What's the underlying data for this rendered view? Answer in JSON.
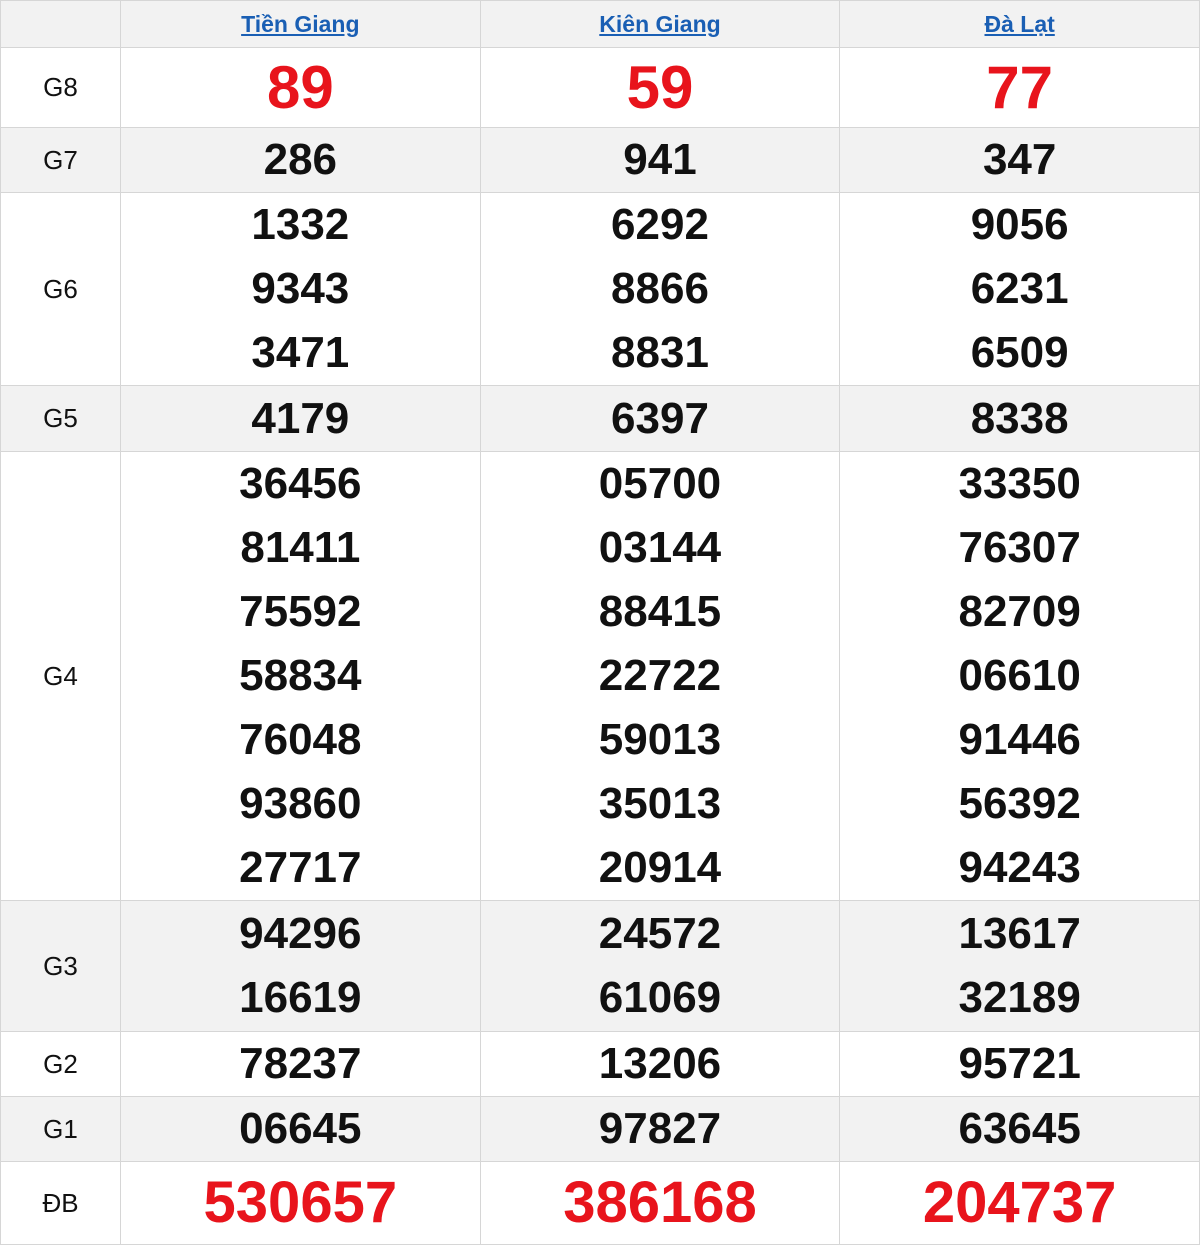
{
  "header": {
    "provinces": [
      "Tiền Giang",
      "Kiên Giang",
      "Đà Lạt"
    ]
  },
  "colors": {
    "link": "#1a5fb4",
    "highlight": "#e8141c",
    "alt_row": "#f2f2f2"
  },
  "prizes": [
    {
      "label": "G8",
      "values": [
        [
          "89"
        ],
        [
          "59"
        ],
        [
          "77"
        ]
      ]
    },
    {
      "label": "G7",
      "values": [
        [
          "286"
        ],
        [
          "941"
        ],
        [
          "347"
        ]
      ]
    },
    {
      "label": "G6",
      "values": [
        [
          "1332",
          "9343",
          "3471"
        ],
        [
          "6292",
          "8866",
          "8831"
        ],
        [
          "9056",
          "6231",
          "6509"
        ]
      ]
    },
    {
      "label": "G5",
      "values": [
        [
          "4179"
        ],
        [
          "6397"
        ],
        [
          "8338"
        ]
      ]
    },
    {
      "label": "G4",
      "values": [
        [
          "36456",
          "81411",
          "75592",
          "58834",
          "76048",
          "93860",
          "27717"
        ],
        [
          "05700",
          "03144",
          "88415",
          "22722",
          "59013",
          "35013",
          "20914"
        ],
        [
          "33350",
          "76307",
          "82709",
          "06610",
          "91446",
          "56392",
          "94243"
        ]
      ]
    },
    {
      "label": "G3",
      "values": [
        [
          "94296",
          "16619"
        ],
        [
          "24572",
          "61069"
        ],
        [
          "13617",
          "32189"
        ]
      ]
    },
    {
      "label": "G2",
      "values": [
        [
          "78237"
        ],
        [
          "13206"
        ],
        [
          "95721"
        ]
      ]
    },
    {
      "label": "G1",
      "values": [
        [
          "06645"
        ],
        [
          "97827"
        ],
        [
          "63645"
        ]
      ]
    },
    {
      "label": "ĐB",
      "values": [
        [
          "530657"
        ],
        [
          "386168"
        ],
        [
          "204737"
        ]
      ]
    }
  ]
}
